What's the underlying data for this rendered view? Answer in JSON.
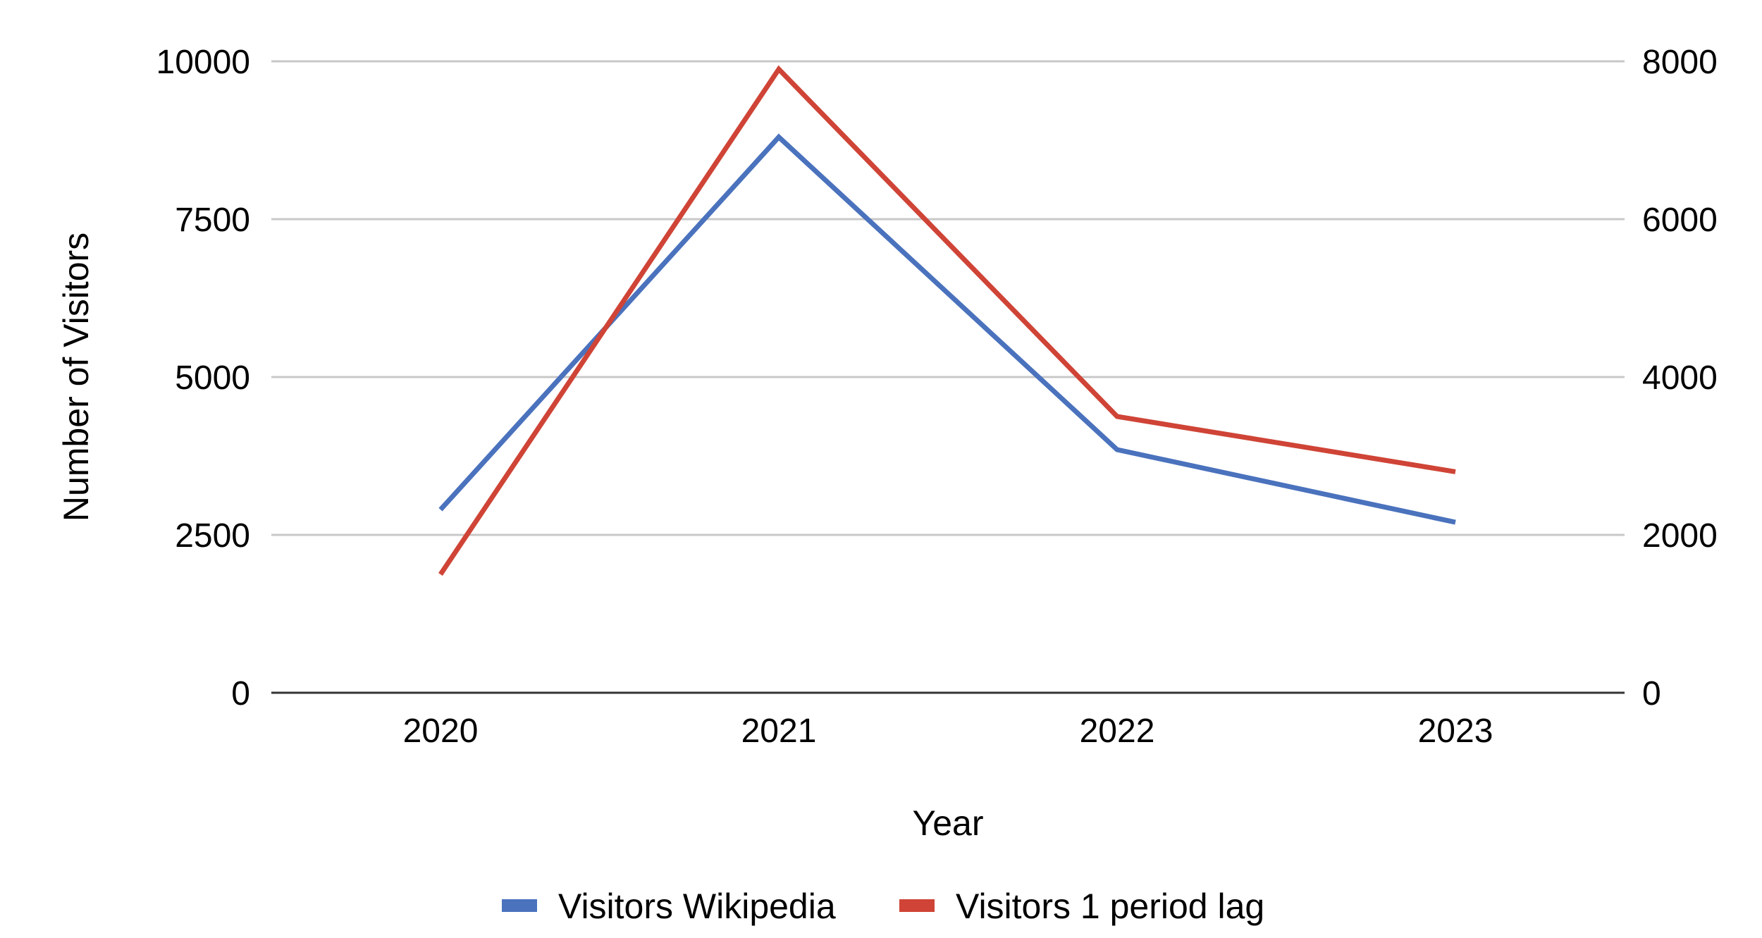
{
  "chart_data": {
    "type": "line",
    "title": "",
    "xlabel": "Year",
    "ylabel": "Number of Visitors",
    "ylabel_right": "",
    "categories": [
      "2020",
      "2021",
      "2022",
      "2023"
    ],
    "ylim": [
      0,
      10000
    ],
    "ylim_right": [
      0,
      8000
    ],
    "yticks": [
      "0",
      "2500",
      "5000",
      "7500",
      "10000"
    ],
    "yticks_right": [
      "0",
      "2000",
      "4000",
      "6000",
      "8000"
    ],
    "grid": true,
    "legend_position": "bottom",
    "series": [
      {
        "name": "Visitors Wikipedia",
        "axis": "left",
        "color": "#4a72bd",
        "values": [
          2900,
          8800,
          3850,
          2700
        ]
      },
      {
        "name": "Visitors 1 period lag",
        "axis": "right",
        "color": "#cf4436",
        "values": [
          1500,
          7900,
          3500,
          2800
        ]
      }
    ]
  }
}
